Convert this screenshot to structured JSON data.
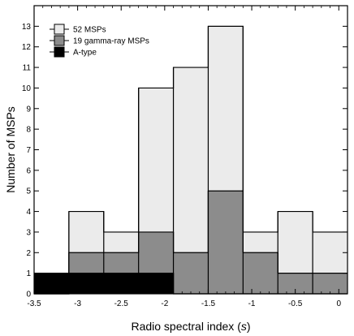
{
  "chart_data": {
    "type": "bar",
    "subtype": "overlaid-step-histogram",
    "title": "",
    "xlabel": "Radio spectral index (",
    "xlabel_symbol": "s",
    "xlabel_suffix": ")",
    "ylabel": "Number of MSPs",
    "xlim": [
      -3.5,
      0.1
    ],
    "ylim": [
      0,
      14
    ],
    "xticks": [
      -3.5,
      -3,
      -2.5,
      -2,
      -1.5,
      -1,
      -0.5,
      0
    ],
    "xtick_labels": [
      "-3.5",
      "-3",
      "-2.5",
      "-2",
      "-1.5",
      "-1",
      "-0.5",
      "0"
    ],
    "yticks": [
      0,
      1,
      2,
      3,
      4,
      5,
      6,
      7,
      8,
      9,
      10,
      11,
      12,
      13
    ],
    "ytick_labels": [
      "0",
      "1",
      "2",
      "3",
      "4",
      "5",
      "6",
      "7",
      "8",
      "9",
      "10",
      "11",
      "12",
      "13"
    ],
    "bin_edges": [
      -3.5,
      -3.1,
      -2.7,
      -2.3,
      -1.9,
      -1.5,
      -1.1,
      -0.7,
      -0.3,
      0.1
    ],
    "series": [
      {
        "name": "52 MSPs",
        "values": [
          0,
          4,
          3,
          10,
          11,
          13,
          3,
          4,
          3
        ],
        "color": "#ebebeb"
      },
      {
        "name": "19 gamma-ray MSPs",
        "values": [
          0,
          2,
          2,
          3,
          2,
          5,
          2,
          1,
          1
        ],
        "color": "#8c8c8c"
      },
      {
        "name": "A-type",
        "values": [
          1,
          1,
          1,
          1,
          0,
          0,
          0,
          0,
          0
        ],
        "color": "#000000"
      }
    ],
    "legend_position": "top-left",
    "grid": false
  }
}
